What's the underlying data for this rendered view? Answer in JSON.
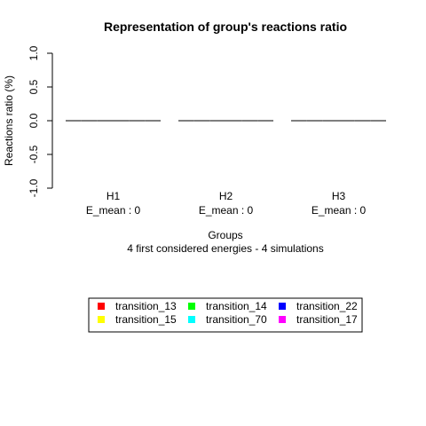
{
  "chart_data": {
    "type": "bar",
    "title": "Representation of group's reactions ratio",
    "xlabel": "Groups",
    "ylabel": "Reactions ratio (%)",
    "subtitle": "4 first considered energies - 4 simulations",
    "subtitle_color": "#ff0000",
    "ylim": [
      -1.0,
      1.0
    ],
    "yticks": [
      "-1.0",
      "-0.5",
      "0.0",
      "0.5",
      "1.0"
    ],
    "ytick_values": [
      -1.0,
      -0.5,
      0.0,
      0.5,
      1.0
    ],
    "groups": [
      {
        "name": "H1",
        "detail": "E_mean : 0"
      },
      {
        "name": "H2",
        "detail": "E_mean : 0"
      },
      {
        "name": "H3",
        "detail": "E_mean : 0"
      }
    ],
    "series": [
      {
        "name": "transition_13",
        "color": "#ff0000",
        "values": [
          0,
          0,
          0
        ]
      },
      {
        "name": "transition_15",
        "color": "#ffff00",
        "values": [
          0,
          0,
          0
        ]
      },
      {
        "name": "transition_14",
        "color": "#00ff00",
        "values": [
          0,
          0,
          0
        ]
      },
      {
        "name": "transition_70",
        "color": "#00ffff",
        "values": [
          0,
          0,
          0
        ]
      },
      {
        "name": "transition_22",
        "color": "#0000ff",
        "values": [
          0,
          0,
          0
        ]
      },
      {
        "name": "transition_17",
        "color": "#ff00ff",
        "values": [
          0,
          0,
          0
        ]
      }
    ],
    "legend_position": "bottom-center",
    "grid": false
  }
}
